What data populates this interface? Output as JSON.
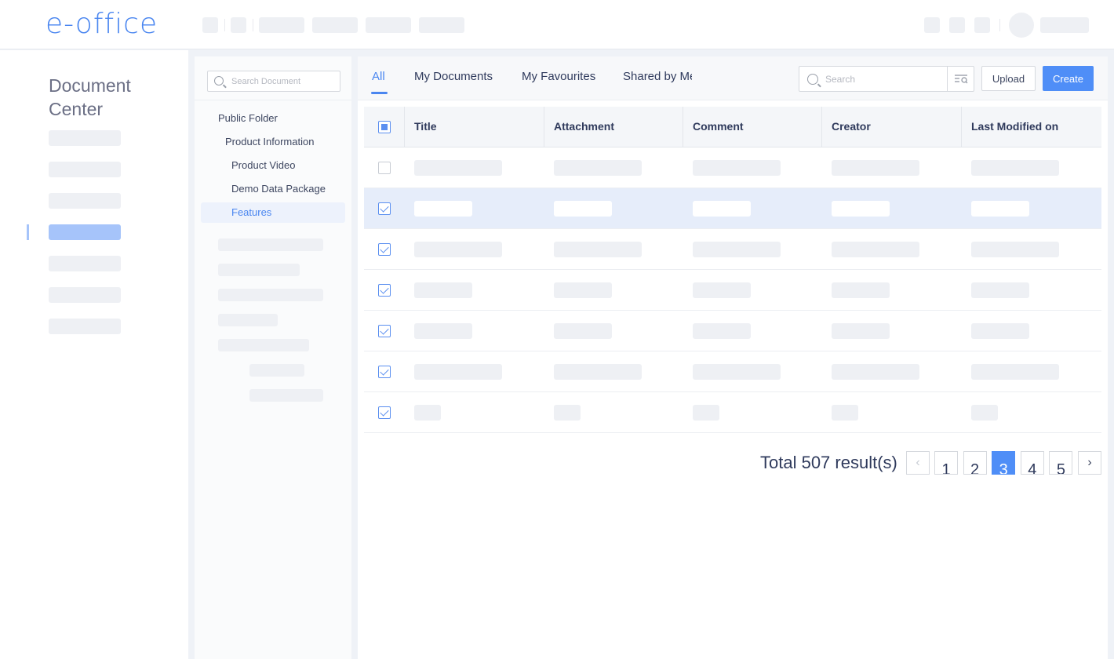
{
  "header": {
    "logo": "e-office"
  },
  "sidebar": {
    "title": "Document Center",
    "active_index": 3
  },
  "tree": {
    "search_placeholder": "Search Document",
    "items": [
      {
        "label": "Public Folder",
        "level": 0
      },
      {
        "label": "Product Information",
        "level": 1
      },
      {
        "label": "Product Video",
        "level": 2
      },
      {
        "label": "Demo Data Package",
        "level": 2
      },
      {
        "label": "Features",
        "level": 2,
        "selected": true
      }
    ]
  },
  "toolbar": {
    "tabs": [
      {
        "label": "All",
        "active": true
      },
      {
        "label": "My Documents"
      },
      {
        "label": "My Favourites"
      },
      {
        "label": "Shared by Me"
      }
    ],
    "search_placeholder": "Search",
    "upload_label": "Upload",
    "create_label": "Create"
  },
  "table": {
    "columns": [
      "Title",
      "Attachment",
      "Comment",
      "Creator",
      "Last Modified on"
    ],
    "rows": [
      {
        "checked": false
      },
      {
        "checked": true,
        "highlighted": true
      },
      {
        "checked": true
      },
      {
        "checked": true
      },
      {
        "checked": true
      },
      {
        "checked": true
      },
      {
        "checked": true
      }
    ]
  },
  "pagination": {
    "total_text": "Total 507 result(s)",
    "pages": [
      "1",
      "2",
      "3",
      "4",
      "5"
    ],
    "current": "3"
  },
  "colors": {
    "accent": "#4f8ef7",
    "highlight_row": "#e6edfa",
    "logo": "#4a86f0"
  }
}
